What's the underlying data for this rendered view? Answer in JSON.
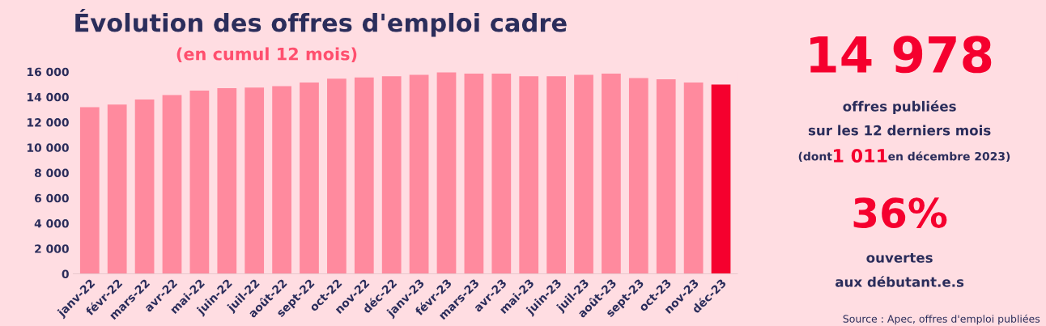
{
  "chart_data": [
    {
      "type": "bar",
      "title": "Évolution des offres d'emploi cadre",
      "subtitle": "(en cumul 12 mois)",
      "categories": [
        "janv-22",
        "févr-22",
        "mars-22",
        "avr-22",
        "mai-22",
        "juin-22",
        "juil-22",
        "août-22",
        "sept-22",
        "oct-22",
        "nov-22",
        "déc-22",
        "janv-23",
        "févr-23",
        "mars-23",
        "avr-23",
        "mai-23",
        "juin-23",
        "juil-23",
        "août-23",
        "sept-23",
        "oct-23",
        "nov-23",
        "déc-23"
      ],
      "values": [
        13200,
        13400,
        13800,
        14150,
        14500,
        14700,
        14750,
        14850,
        15150,
        15450,
        15550,
        15650,
        15750,
        15950,
        15850,
        15850,
        15650,
        15650,
        15750,
        15850,
        15500,
        15400,
        15150,
        14978
      ],
      "colors": [
        "#ff8a9e",
        "#ff8a9e",
        "#ff8a9e",
        "#ff8a9e",
        "#ff8a9e",
        "#ff8a9e",
        "#ff8a9e",
        "#ff8a9e",
        "#ff8a9e",
        "#ff8a9e",
        "#ff8a9e",
        "#ff8a9e",
        "#ff8a9e",
        "#ff8a9e",
        "#ff8a9e",
        "#ff8a9e",
        "#ff8a9e",
        "#ff8a9e",
        "#ff8a9e",
        "#ff8a9e",
        "#ff8a9e",
        "#ff8a9e",
        "#ff8a9e",
        "#f5002e"
      ],
      "ylim": [
        0,
        16000
      ],
      "yticks": [
        {
          "value": 0,
          "label": "0"
        },
        {
          "value": 2000,
          "label": "2 000"
        },
        {
          "value": 4000,
          "label": "4 000"
        },
        {
          "value": 6000,
          "label": "6 000"
        },
        {
          "value": 8000,
          "label": "8 000"
        },
        {
          "value": 10000,
          "label": "10 000"
        },
        {
          "value": 12000,
          "label": "12 000"
        },
        {
          "value": 14000,
          "label": "14 000"
        },
        {
          "value": 16000,
          "label": "16 000"
        }
      ],
      "grid": false,
      "legend": false
    },
    {
      "type": "other",
      "annotations": [
        "14 978",
        "offres publiées",
        "sur les 12 derniers mois",
        "(dont",
        "1 011",
        "en décembre 2023)",
        "36%",
        "ouvertes",
        "aux débutant.e.s",
        "Source : Apec, offres d'emploi publiées"
      ]
    }
  ]
}
